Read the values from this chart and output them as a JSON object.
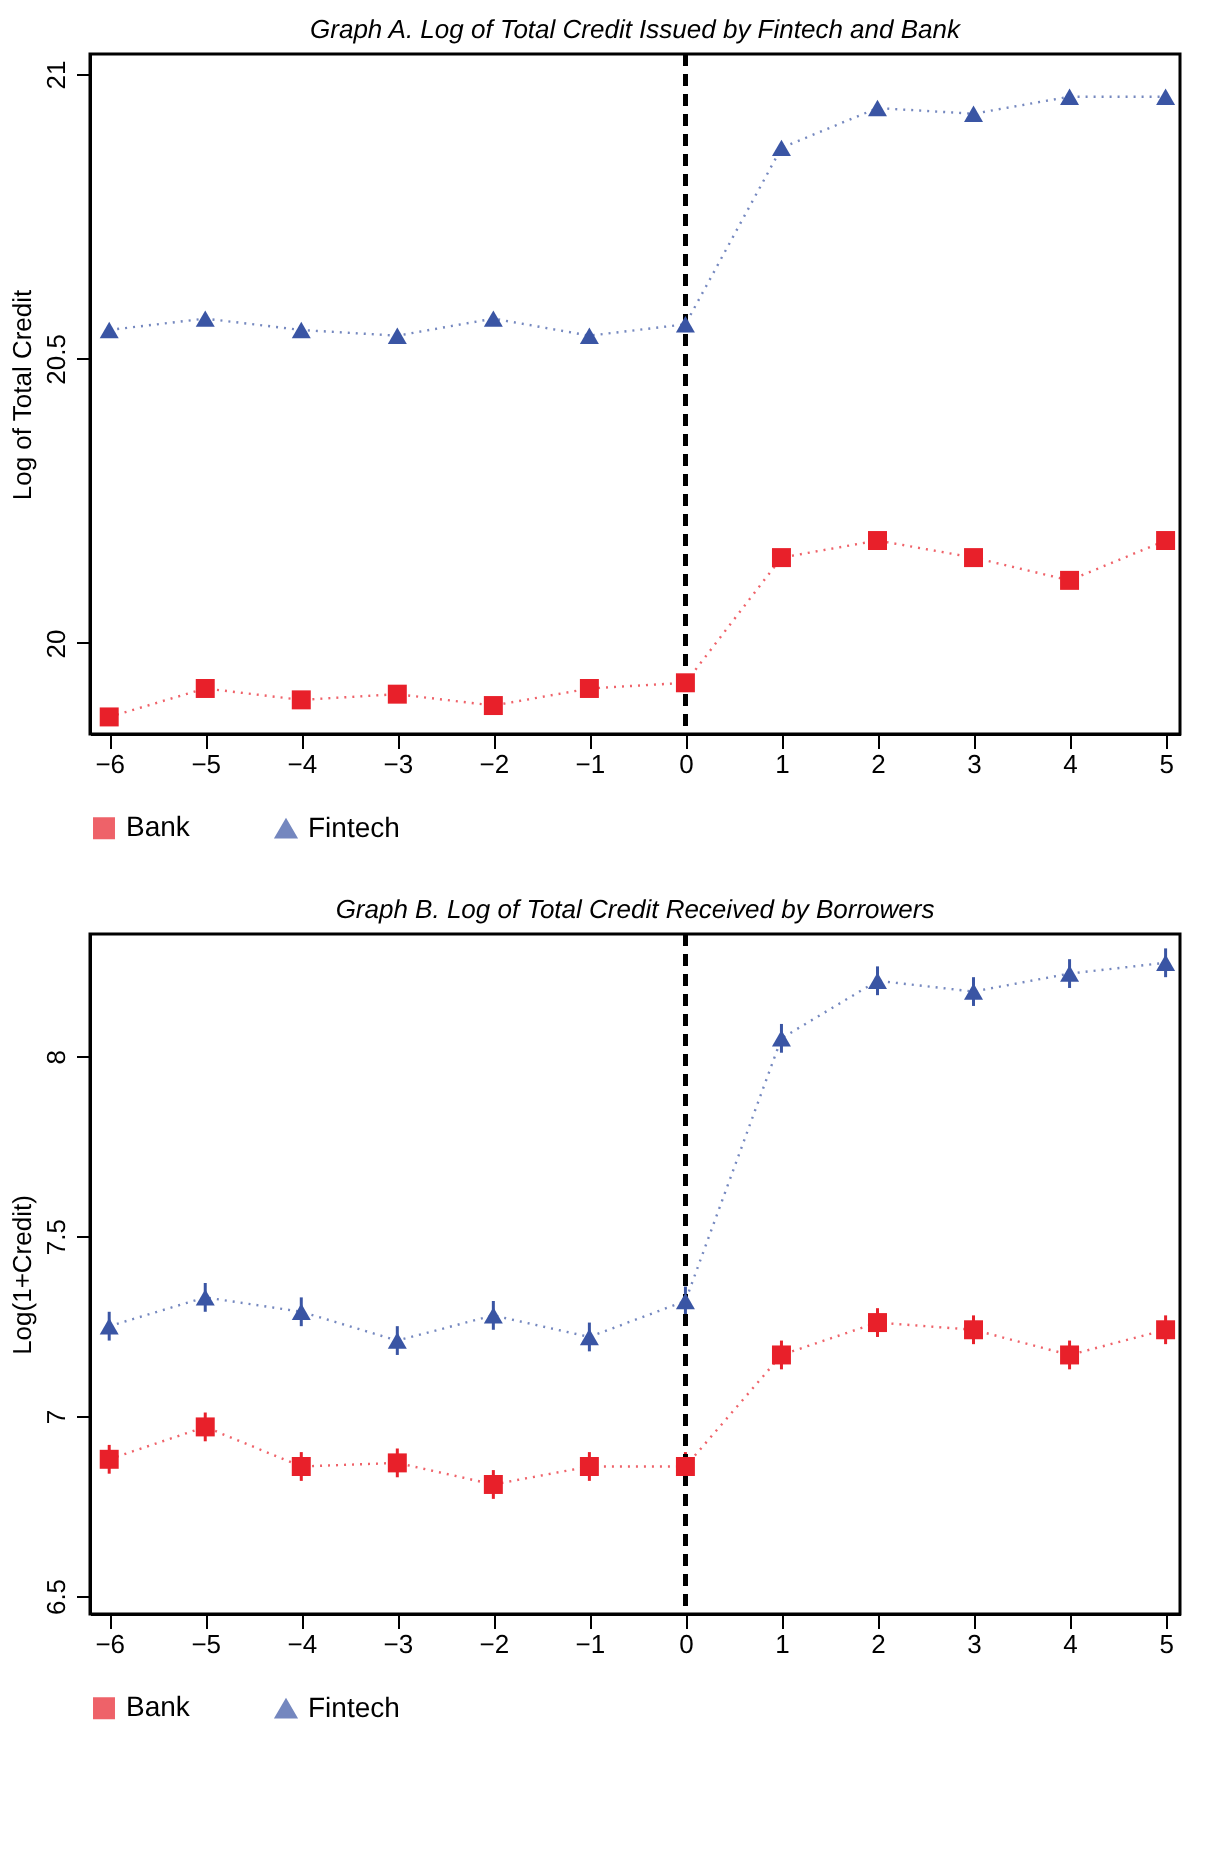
{
  "chart_data": [
    {
      "type": "line",
      "title": "Graph A. Log of Total Credit Issued by Fintech and Bank",
      "ylabel": "Log of Total Credit",
      "x": [
        -6,
        -5,
        -4,
        -3,
        -2,
        -1,
        0,
        1,
        2,
        3,
        4,
        5
      ],
      "series": [
        {
          "name": "Bank",
          "color": "#e8202a",
          "marker": "square",
          "values": [
            19.87,
            19.92,
            19.9,
            19.91,
            19.89,
            19.92,
            19.93,
            20.15,
            20.18,
            20.15,
            20.11,
            20.18
          ]
        },
        {
          "name": "Fintech",
          "color": "#3a55a4",
          "marker": "triangle",
          "values": [
            20.55,
            20.57,
            20.55,
            20.54,
            20.57,
            20.54,
            20.56,
            20.87,
            20.94,
            20.93,
            20.96,
            20.96
          ]
        }
      ],
      "line_style": "dotted",
      "xlim": [
        -6.2,
        5.15
      ],
      "xticks": [
        -6,
        -5,
        -4,
        -3,
        -2,
        -1,
        0,
        1,
        2,
        3,
        4,
        5
      ],
      "ylim": [
        19.84,
        21.035
      ],
      "yticks": [
        20,
        20.5,
        21
      ],
      "grid": false,
      "legend": "bottom",
      "ref_lines": [
        {
          "axis": "x",
          "value": 0,
          "color": "#000000",
          "line_style": "dashed"
        }
      ]
    },
    {
      "type": "line",
      "title": "Graph B. Log of Total Credit Received by Borrowers",
      "ylabel": "Log(1+Credit)",
      "x": [
        -6,
        -5,
        -4,
        -3,
        -2,
        -1,
        0,
        1,
        2,
        3,
        4,
        5
      ],
      "series": [
        {
          "name": "Bank",
          "color": "#e8202a",
          "marker": "square",
          "values": [
            6.88,
            6.97,
            6.86,
            6.87,
            6.81,
            6.86,
            6.86,
            7.17,
            7.26,
            7.24,
            7.17,
            7.24
          ],
          "errors": [
            0.04,
            0.04,
            0.04,
            0.04,
            0.04,
            0.04,
            0.04,
            0.04,
            0.04,
            0.04,
            0.04,
            0.04
          ]
        },
        {
          "name": "Fintech",
          "color": "#3a55a4",
          "marker": "triangle",
          "values": [
            7.25,
            7.33,
            7.29,
            7.21,
            7.28,
            7.22,
            7.32,
            8.05,
            8.21,
            8.18,
            8.23,
            8.26
          ],
          "errors": [
            0.04,
            0.04,
            0.04,
            0.04,
            0.04,
            0.04,
            0.04,
            0.04,
            0.04,
            0.04,
            0.04,
            0.04
          ]
        }
      ],
      "line_style": "dotted",
      "xlim": [
        -6.2,
        5.15
      ],
      "xticks": [
        -6,
        -5,
        -4,
        -3,
        -2,
        -1,
        0,
        1,
        2,
        3,
        4,
        5
      ],
      "ylim": [
        6.45,
        8.34
      ],
      "yticks": [
        6.5,
        7,
        7.5,
        8
      ],
      "grid": false,
      "legend": "bottom",
      "ref_lines": [
        {
          "axis": "x",
          "value": 0,
          "color": "#000000",
          "line_style": "dashed"
        }
      ]
    }
  ]
}
